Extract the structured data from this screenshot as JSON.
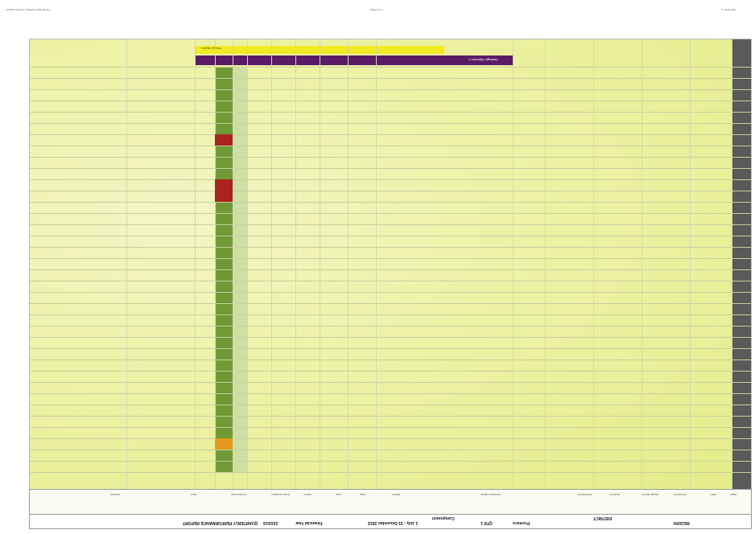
{
  "page_header": {
    "left": "2015/16 Quarter 1 Statutory Plan Report",
    "center": "Page 1 of 1",
    "right": "17 September"
  },
  "bands": {
    "yellow_label": "Strategic Objective",
    "purple_label": "Strategic Objective 1"
  },
  "footer": {
    "report_title": "QUARTERLY PERFORMANCE REPORT",
    "financial_year_label": "Financial Year",
    "financial_year_value": "2015/16",
    "quarter_label": "QTR 1",
    "period": "1 July - 31 December 2015",
    "province": "Province",
    "region_label": "REGION",
    "district_label": "DISTRICT",
    "component_label": "Component"
  },
  "column_headers": [
    "Region",
    "District",
    "Financial Year",
    "Strategic Objective",
    "Programme",
    "Sub-Programme",
    "Performance Indicator",
    "Baseline",
    "Target",
    "Actual",
    "Variance",
    "Reason for Variance",
    "Corrective Action",
    "Status",
    "Comments"
  ],
  "status_colors": {
    "green": "#6f9a35",
    "red": "#a9241d",
    "orange": "#e39a1c",
    "purple": "#5a1a66",
    "yellow": "#f2ea22"
  },
  "red_rows": [
    6,
    10,
    11
  ],
  "orange_rows": [
    33
  ]
}
